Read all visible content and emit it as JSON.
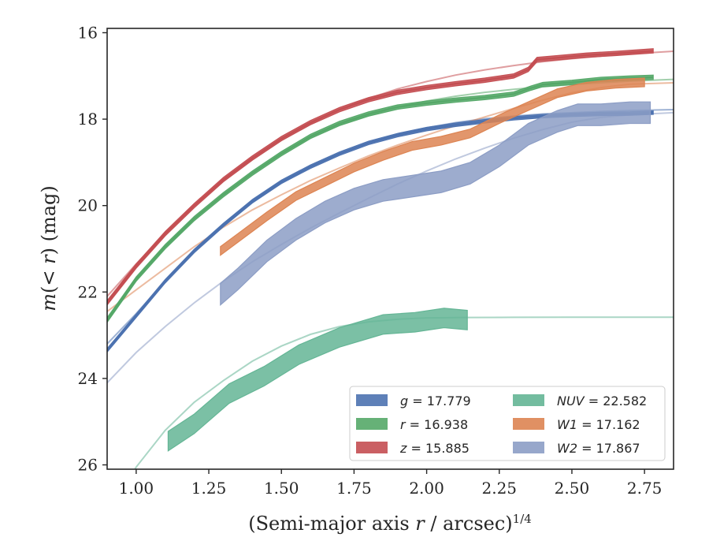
{
  "chart_data": {
    "type": "line",
    "xlabel": "(Semi-major axis r / arcsec)^1/4",
    "ylabel": "m(< r) (mag)",
    "xlim": [
      0.9,
      2.85
    ],
    "ylim": [
      26.1,
      15.9
    ],
    "y_inverted": true,
    "x_ticks": [
      "1.00",
      "1.25",
      "1.50",
      "1.75",
      "2.00",
      "2.25",
      "2.50",
      "2.75"
    ],
    "y_ticks": [
      "16",
      "18",
      "20",
      "22",
      "24",
      "26"
    ],
    "legend": {
      "placement": "lower-right",
      "columns": 2
    },
    "series": [
      {
        "name": "g = 17.779",
        "color": "#4c72b0",
        "legend": {
          "prefix": "g",
          "value": "17.779"
        },
        "x": [
          0.9,
          1.0,
          1.1,
          1.2,
          1.3,
          1.4,
          1.5,
          1.6,
          1.7,
          1.8,
          1.9,
          2.0,
          2.1,
          2.2,
          2.3,
          2.4,
          2.5,
          2.6,
          2.7,
          2.78
        ],
        "y": [
          23.35,
          22.55,
          21.75,
          21.05,
          20.45,
          19.9,
          19.45,
          19.1,
          18.8,
          18.55,
          18.37,
          18.23,
          18.13,
          18.05,
          17.98,
          17.93,
          17.9,
          17.88,
          17.87,
          17.85
        ],
        "band": 0.08,
        "fit": {
          "x": [
            0.9,
            1.0,
            1.1,
            1.2,
            1.3,
            1.4,
            1.5,
            1.6,
            1.7,
            1.8,
            1.9,
            2.0,
            2.1,
            2.2,
            2.3,
            2.4,
            2.5,
            2.6,
            2.7,
            2.85
          ],
          "y": [
            23.2,
            22.5,
            21.75,
            21.05,
            20.45,
            19.92,
            19.48,
            19.1,
            18.8,
            18.55,
            18.35,
            18.2,
            18.08,
            17.99,
            17.93,
            17.88,
            17.85,
            17.82,
            17.8,
            17.78
          ]
        }
      },
      {
        "name": "r = 16.938",
        "color": "#55a868",
        "legend": {
          "prefix": "r",
          "value": "16.938"
        },
        "x": [
          0.9,
          1.0,
          1.1,
          1.2,
          1.3,
          1.4,
          1.5,
          1.6,
          1.7,
          1.8,
          1.9,
          2.0,
          2.1,
          2.2,
          2.3,
          2.36,
          2.4,
          2.5,
          2.6,
          2.7,
          2.78
        ],
        "y": [
          22.65,
          21.7,
          20.95,
          20.3,
          19.75,
          19.25,
          18.8,
          18.4,
          18.1,
          17.88,
          17.72,
          17.63,
          17.56,
          17.5,
          17.42,
          17.28,
          17.2,
          17.15,
          17.08,
          17.05,
          17.03
        ],
        "band": 0.1,
        "fit": {
          "x": [
            0.9,
            1.0,
            1.1,
            1.2,
            1.3,
            1.4,
            1.5,
            1.6,
            1.7,
            1.8,
            1.9,
            2.0,
            2.1,
            2.2,
            2.3,
            2.4,
            2.5,
            2.6,
            2.7,
            2.85
          ],
          "y": [
            22.6,
            21.7,
            20.95,
            20.3,
            19.75,
            19.25,
            18.8,
            18.42,
            18.13,
            17.9,
            17.72,
            17.58,
            17.47,
            17.38,
            17.31,
            17.25,
            17.2,
            17.16,
            17.12,
            17.08
          ]
        }
      },
      {
        "name": "z = 15.885",
        "color": "#c44e52",
        "legend": {
          "prefix": "z",
          "value": "15.885"
        },
        "x": [
          0.9,
          1.0,
          1.1,
          1.2,
          1.3,
          1.4,
          1.5,
          1.6,
          1.7,
          1.8,
          1.9,
          2.0,
          2.1,
          2.2,
          2.3,
          2.35,
          2.38,
          2.45,
          2.55,
          2.65,
          2.78
        ],
        "y": [
          22.25,
          21.4,
          20.65,
          20.0,
          19.4,
          18.9,
          18.45,
          18.08,
          17.78,
          17.55,
          17.38,
          17.27,
          17.18,
          17.1,
          17.0,
          16.85,
          16.62,
          16.58,
          16.52,
          16.48,
          16.42
        ],
        "band": 0.1,
        "fit": {
          "x": [
            0.9,
            1.0,
            1.1,
            1.2,
            1.3,
            1.4,
            1.5,
            1.6,
            1.7,
            1.8,
            1.9,
            2.0,
            2.1,
            2.2,
            2.3,
            2.4,
            2.5,
            2.6,
            2.7,
            2.85
          ],
          "y": [
            22.1,
            21.35,
            20.65,
            20.0,
            19.42,
            18.92,
            18.48,
            18.1,
            17.78,
            17.52,
            17.3,
            17.13,
            16.98,
            16.86,
            16.76,
            16.67,
            16.6,
            16.54,
            16.49,
            16.43
          ]
        }
      },
      {
        "name": "NUV = 22.582",
        "color": "#64b595",
        "legend": {
          "prefix": "NUV",
          "value": "22.582"
        },
        "x": [
          1.11,
          1.2,
          1.32,
          1.44,
          1.56,
          1.7,
          1.85,
          1.96,
          2.06,
          2.14
        ],
        "y": [
          25.45,
          25.05,
          24.35,
          23.95,
          23.45,
          23.05,
          22.75,
          22.7,
          22.6,
          22.65
        ],
        "band": 0.45,
        "fit": {
          "x": [
            0.9,
            1.0,
            1.1,
            1.2,
            1.3,
            1.4,
            1.5,
            1.6,
            1.7,
            1.8,
            1.9,
            2.0,
            2.14,
            2.3,
            2.5,
            2.7,
            2.85
          ],
          "y": [
            27.2,
            26.05,
            25.2,
            24.55,
            24.05,
            23.6,
            23.25,
            22.98,
            22.8,
            22.69,
            22.63,
            22.6,
            22.59,
            22.585,
            22.583,
            22.582,
            22.582
          ]
        }
      },
      {
        "name": "W1 = 17.162",
        "color": "#dd8452",
        "legend": {
          "prefix": "W1",
          "value": "17.162"
        },
        "x": [
          1.29,
          1.35,
          1.45,
          1.55,
          1.65,
          1.75,
          1.85,
          1.95,
          2.05,
          2.15,
          2.25,
          2.35,
          2.45,
          2.55,
          2.65,
          2.75
        ],
        "y": [
          21.05,
          20.75,
          20.25,
          19.78,
          19.45,
          19.12,
          18.85,
          18.62,
          18.5,
          18.33,
          18.0,
          17.7,
          17.4,
          17.25,
          17.18,
          17.15
        ],
        "band": 0.2,
        "fit": {
          "x": [
            0.9,
            1.0,
            1.1,
            1.2,
            1.3,
            1.4,
            1.5,
            1.6,
            1.7,
            1.8,
            1.9,
            2.0,
            2.1,
            2.2,
            2.3,
            2.4,
            2.5,
            2.6,
            2.7,
            2.85
          ],
          "y": [
            22.45,
            21.95,
            21.45,
            20.95,
            20.5,
            20.1,
            19.75,
            19.42,
            19.13,
            18.85,
            18.6,
            18.37,
            18.15,
            17.95,
            17.75,
            17.56,
            17.39,
            17.27,
            17.19,
            17.16
          ]
        }
      },
      {
        "name": "W2 = 17.867",
        "color": "#8c9dc5",
        "legend": {
          "prefix": "W2",
          "value": "17.867"
        },
        "x": [
          1.29,
          1.35,
          1.45,
          1.55,
          1.65,
          1.75,
          1.85,
          1.95,
          2.05,
          2.15,
          2.25,
          2.35,
          2.45,
          2.52,
          2.6,
          2.7,
          2.77
        ],
        "y": [
          22.05,
          21.7,
          21.05,
          20.55,
          20.15,
          19.85,
          19.65,
          19.55,
          19.45,
          19.25,
          18.85,
          18.35,
          18.05,
          17.9,
          17.9,
          17.85,
          17.85
        ],
        "band": 0.5,
        "fit": {
          "x": [
            0.9,
            1.0,
            1.1,
            1.2,
            1.3,
            1.4,
            1.5,
            1.6,
            1.7,
            1.8,
            1.9,
            2.0,
            2.1,
            2.2,
            2.3,
            2.4,
            2.5,
            2.6,
            2.7,
            2.85
          ],
          "y": [
            24.1,
            23.4,
            22.8,
            22.25,
            21.75,
            21.3,
            20.9,
            20.52,
            20.17,
            19.83,
            19.5,
            19.2,
            18.92,
            18.67,
            18.44,
            18.24,
            18.07,
            17.96,
            17.9,
            17.85
          ]
        }
      }
    ]
  }
}
